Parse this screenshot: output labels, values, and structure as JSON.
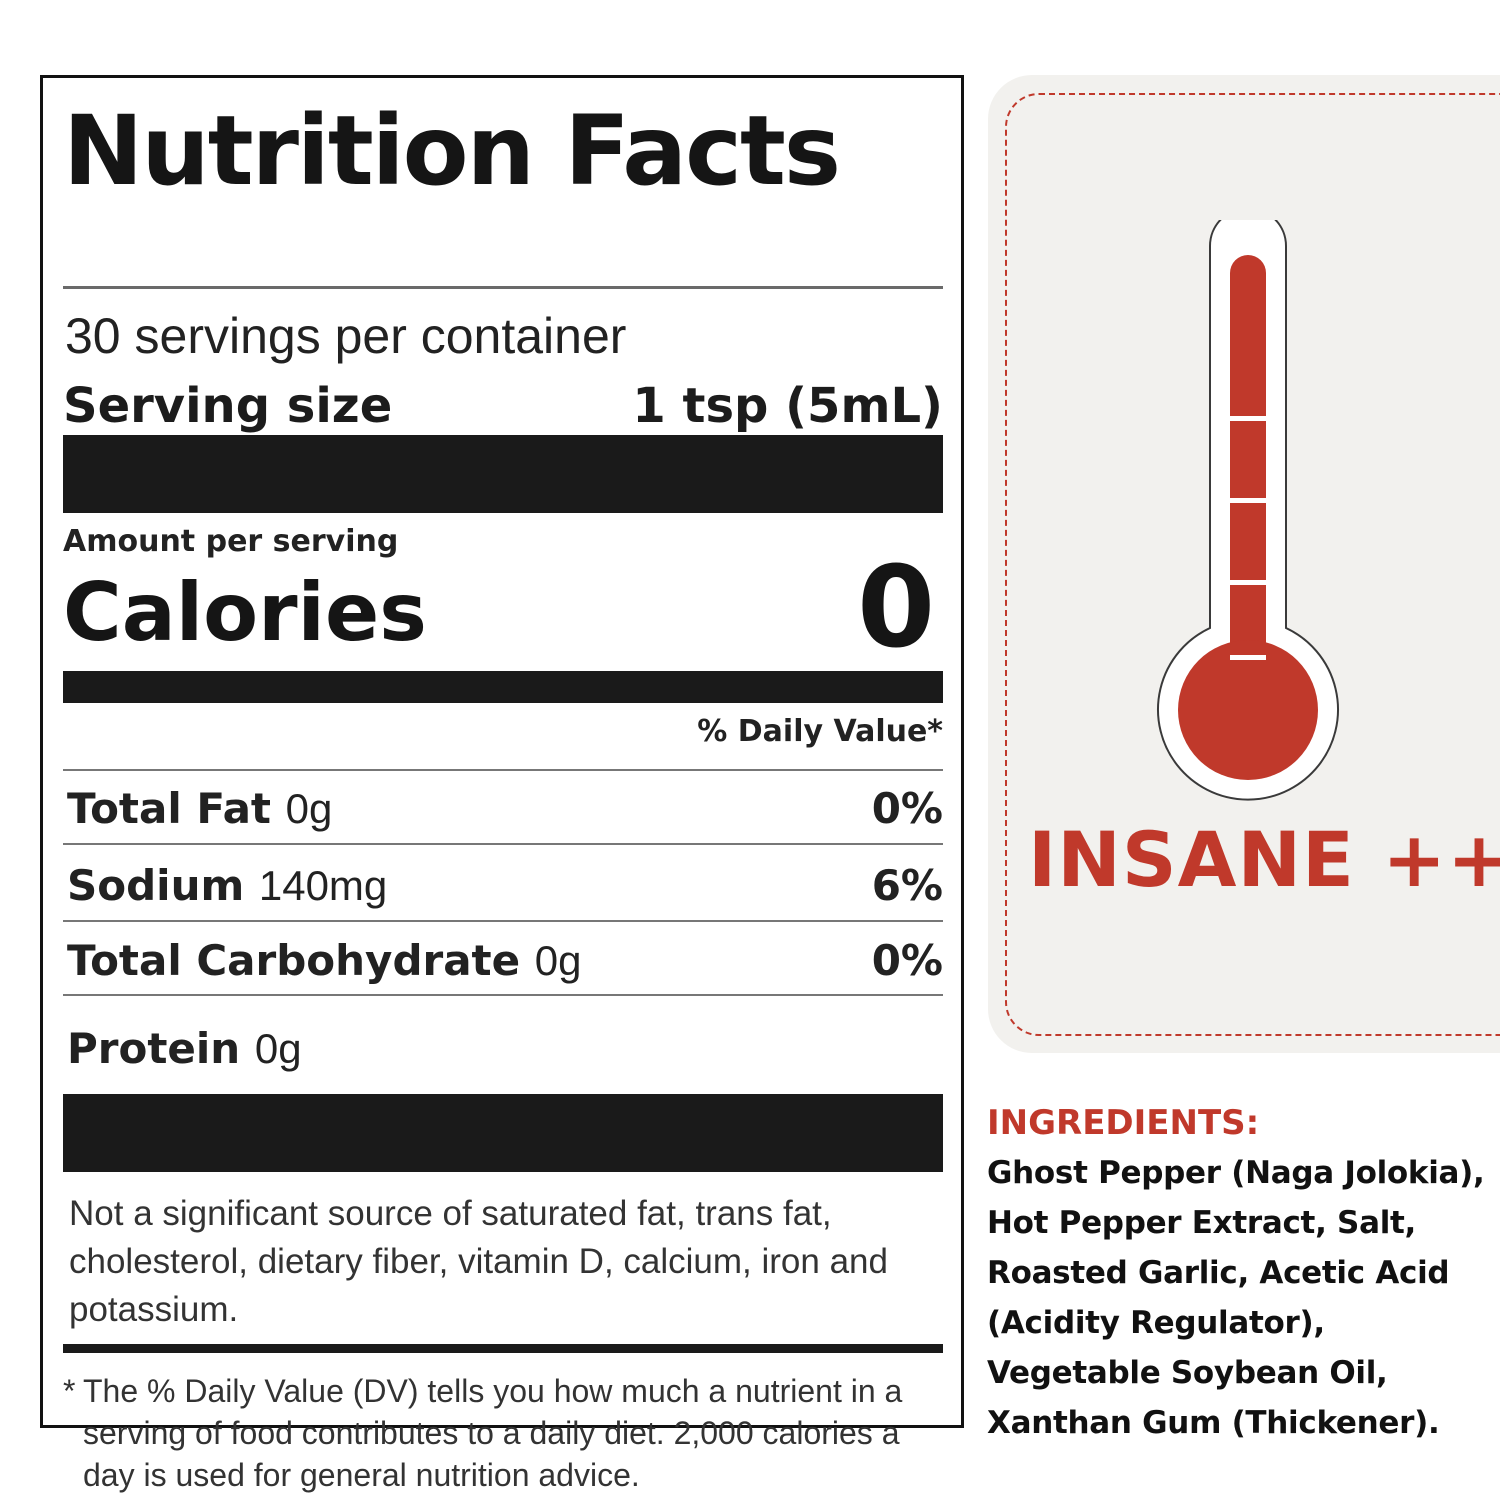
{
  "nutrition": {
    "title": "Nutrition Facts",
    "servings_per_container": "30 servings per container",
    "serving_size_label": "Serving size",
    "serving_size_value": "1 tsp (5mL)",
    "amount_per_serving": "Amount per serving",
    "calories_label": "Calories",
    "calories_value": "0",
    "daily_value_header": "% Daily Value*",
    "rows": [
      {
        "name": "Total Fat",
        "amount": "0g",
        "dv": "0%"
      },
      {
        "name": "Sodium",
        "amount": "140mg",
        "dv": "6%"
      },
      {
        "name": "Total Carbohydrate",
        "amount": "0g",
        "dv": "0%"
      },
      {
        "name": "Protein",
        "amount": "0g",
        "dv": ""
      }
    ],
    "not_significant": "Not a significant source of saturated fat, trans fat, cholesterol, dietary fiber, vitamin D, calcium, iron and potassium.",
    "footnote_star": "*",
    "footnote": "The % Daily Value (DV) tells you how much a nutrient in a serving of food contributes to a daily diet. 2,000 calories a day is used for general nutrition advice."
  },
  "heat_level": {
    "label": "INSANE ++",
    "fill_fraction": 1.0,
    "colors": {
      "accent": "#c0392b",
      "panel": "#f2f1ee"
    },
    "icon": "thermometer-icon"
  },
  "ingredients": {
    "title": "INGREDIENTS:",
    "lines": [
      "Ghost Pepper (Naga Jolokia),",
      "Hot Pepper Extract, Salt,",
      "Roasted Garlic, Acetic Acid",
      "(Acidity Regulator),",
      "Vegetable Soybean Oil,",
      "Xanthan Gum (Thickener)."
    ]
  }
}
